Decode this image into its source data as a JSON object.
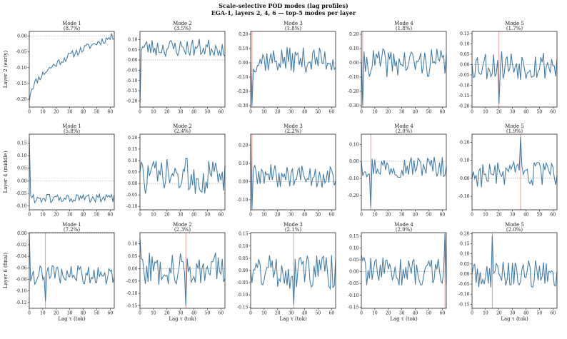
{
  "figure": {
    "title_line1": "Scale-selective POD modes (lag profiles)",
    "title_line2": "EGA-1, layers 2, 4, 6  —  top-5 modes per layer"
  },
  "chart_data": {
    "type": "line",
    "x_range": [
      0,
      63
    ],
    "x_ticks": [
      0,
      10,
      20,
      30,
      40,
      50,
      60
    ],
    "xlabel": "Lag τ (tok)",
    "series_color": "#3f7aa8",
    "marker_color": "#e0554b",
    "zero_line": "dotted",
    "rows": [
      {
        "ylabel": "Layer 2 (early)",
        "panels": [
          {
            "title": "Mode 1",
            "subtitle": "(8.7%)",
            "ylim": [
              -0.225,
              0.015
            ],
            "yticks": [
              -0.2,
              -0.15,
              -0.1,
              -0.05,
              0.0
            ],
            "marker_lag": null,
            "seed": 11,
            "shape": "trend",
            "trend_start": -0.2,
            "trend_end": 0.0,
            "amp": 0.012
          },
          {
            "title": "Mode 2",
            "subtitle": "(3.5%)",
            "ylim": [
              -0.23,
              0.14
            ],
            "yticks": [
              -0.2,
              -0.15,
              -0.1,
              -0.05,
              0.0,
              0.05,
              0.1
            ],
            "marker_lag": null,
            "seed": 23,
            "shape": "noisy",
            "first": -0.21,
            "base": 0.06,
            "amp": 0.045
          },
          {
            "title": "Mode 3",
            "subtitle": "(1.8%)",
            "ylim": [
              -0.31,
              0.22
            ],
            "yticks": [
              -0.3,
              -0.2,
              -0.1,
              0.0,
              0.1,
              0.2
            ],
            "marker_lag": 1,
            "seed": 37,
            "shape": "noisy",
            "first": 0.0,
            "spike_at": 1,
            "spike_val": -0.3,
            "base": 0.02,
            "amp": 0.09
          },
          {
            "title": "Mode 4",
            "subtitle": "(1.8%)",
            "ylim": [
              -0.31,
              0.22
            ],
            "yticks": [
              -0.3,
              -0.2,
              -0.1,
              0.0,
              0.1,
              0.2
            ],
            "marker_lag": 1,
            "seed": 41,
            "shape": "noisy",
            "first": 0.02,
            "spike_at": 1,
            "spike_val": -0.3,
            "base": 0.0,
            "amp": 0.1
          },
          {
            "title": "Mode 5",
            "subtitle": "(1.7%)",
            "ylim": [
              -0.205,
              0.16
            ],
            "yticks": [
              -0.2,
              -0.15,
              -0.1,
              -0.05,
              0.0,
              0.05,
              0.1,
              0.15
            ],
            "marker_lag": 20,
            "seed": 53,
            "shape": "noisy",
            "first": 0.0,
            "spike_at": 20,
            "spike_val": -0.19,
            "base": 0.0,
            "amp": 0.075
          }
        ]
      },
      {
        "ylabel": "Layer 4 (middle)",
        "panels": [
          {
            "title": "Mode 1",
            "subtitle": "(5.8%)",
            "ylim": [
              -0.115,
              0.185
            ],
            "yticks": [
              -0.1,
              -0.05,
              0.0,
              0.05,
              0.1,
              0.15
            ],
            "marker_lag": null,
            "seed": 61,
            "shape": "decay",
            "first": 0.17,
            "base": -0.07,
            "amp": 0.018
          },
          {
            "title": "Mode 2",
            "subtitle": "(2.4%)",
            "ylim": [
              -0.115,
              0.215
            ],
            "yticks": [
              -0.1,
              -0.05,
              0.0,
              0.05,
              0.1,
              0.15,
              0.2
            ],
            "marker_lag": null,
            "seed": 73,
            "shape": "noisy",
            "first": 0.05,
            "base": 0.03,
            "amp": 0.08
          },
          {
            "title": "Mode 3",
            "subtitle": "(2.2%)",
            "ylim": [
              -0.155,
              0.26
            ],
            "yticks": [
              -0.1,
              0.0,
              0.1,
              0.2
            ],
            "marker_lag": 1,
            "seed": 89,
            "shape": "noisy",
            "first": 0.24,
            "spike_at": 1,
            "spike_val": -0.15,
            "base": 0.03,
            "amp": 0.065
          },
          {
            "title": "Mode 4",
            "subtitle": "(2.0%)",
            "ylim": [
              -0.285,
              0.16
            ],
            "yticks": [
              -0.2,
              -0.1,
              0.0,
              0.1
            ],
            "marker_lag": 7,
            "seed": 97,
            "shape": "noisy",
            "first": 0.0,
            "spike_at": 7,
            "spike_val": -0.27,
            "base": -0.03,
            "amp": 0.065
          },
          {
            "title": "Mode 5",
            "subtitle": "(1.9%)",
            "ylim": [
              -0.175,
              0.245
            ],
            "yticks": [
              -0.1,
              0.0,
              0.1,
              0.2
            ],
            "marker_lag": 36,
            "seed": 103,
            "shape": "noisy",
            "first": 0.0,
            "spike_at": 36,
            "spike_val": 0.23,
            "base": 0.02,
            "amp": 0.07
          }
        ]
      },
      {
        "ylabel": "Layer 6 (final)",
        "panels": [
          {
            "title": "Mode 1",
            "subtitle": "(7.2%)",
            "ylim": [
              -0.13,
              0.001
            ],
            "yticks": [
              -0.12,
              -0.1,
              -0.08,
              -0.06,
              -0.04,
              -0.02,
              0.0
            ],
            "marker_lag": 12,
            "seed": 109,
            "shape": "noisy",
            "first": 0.0,
            "spike_at": 12,
            "spike_val": -0.118,
            "base": -0.072,
            "amp": 0.017
          },
          {
            "title": "Mode 2",
            "subtitle": "(2.3%)",
            "ylim": [
              -0.16,
              0.145
            ],
            "yticks": [
              -0.15,
              -0.1,
              -0.05,
              0.0,
              0.05,
              0.1
            ],
            "marker_lag": 34,
            "seed": 127,
            "shape": "noisy",
            "first": 0.12,
            "spike_at": 34,
            "spike_val": -0.15,
            "base": 0.0,
            "amp": 0.065
          },
          {
            "title": "Mode 3",
            "subtitle": "(2.1%)",
            "ylim": [
              -0.155,
              0.155
            ],
            "yticks": [
              -0.15,
              -0.1,
              -0.05,
              0.0,
              0.05,
              0.1,
              0.15
            ],
            "marker_lag": 32,
            "seed": 131,
            "shape": "noisy",
            "first": 0.0,
            "spike_at": 32,
            "spike_val": -0.14,
            "base": 0.0,
            "amp": 0.075
          },
          {
            "title": "Mode 4",
            "subtitle": "(2.0%)",
            "ylim": [
              -0.155,
              0.165
            ],
            "yticks": [
              -0.15,
              -0.1,
              -0.05,
              0.0,
              0.05,
              0.1,
              0.15
            ],
            "marker_lag": 62,
            "seed": 139,
            "shape": "noisy",
            "first": 0.07,
            "spike_at": 62,
            "spike_val": 0.16,
            "base": 0.0,
            "amp": 0.06
          },
          {
            "title": "Mode 5",
            "subtitle": "(2.0%)",
            "ylim": [
              -0.17,
              0.205
            ],
            "yticks": [
              -0.15,
              -0.1,
              -0.05,
              0.0,
              0.05,
              0.1,
              0.15,
              0.2
            ],
            "marker_lag": 15,
            "seed": 149,
            "shape": "noisy",
            "first": 0.0,
            "spike_at": 15,
            "spike_val": 0.19,
            "base": 0.0,
            "amp": 0.07
          }
        ]
      }
    ]
  }
}
